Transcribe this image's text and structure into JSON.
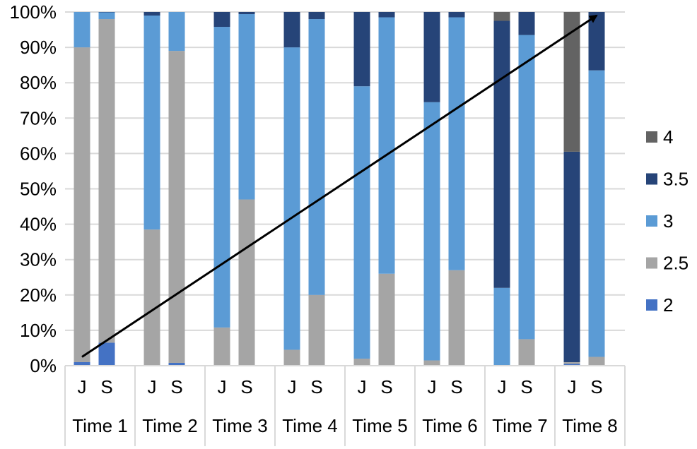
{
  "chart_data": {
    "type": "bar",
    "stacked": true,
    "percent_stacked": true,
    "title": "",
    "xlabel": "",
    "ylabel": "",
    "ylim": [
      0,
      100
    ],
    "y_ticks": [
      "0%",
      "10%",
      "20%",
      "30%",
      "40%",
      "50%",
      "60%",
      "70%",
      "80%",
      "90%",
      "100%"
    ],
    "grid": true,
    "legend_position": "right",
    "groups": [
      "Time 1",
      "Time 2",
      "Time 3",
      "Time 4",
      "Time 5",
      "Time 6",
      "Time 7",
      "Time 8"
    ],
    "sub_categories": [
      "J",
      "S"
    ],
    "categories": [
      "Time 1 J",
      "Time 1 S",
      "Time 2 J",
      "Time 2 S",
      "Time 3 J",
      "Time 3 S",
      "Time 4 J",
      "Time 4 S",
      "Time 5 J",
      "Time 5 S",
      "Time 6 J",
      "Time 6 S",
      "Time 7 J",
      "Time 7 S",
      "Time 8 J",
      "Time 8 S"
    ],
    "series": [
      {
        "name": "2",
        "color": "#4472C4",
        "values": [
          1,
          6.5,
          0,
          0.8,
          0,
          0,
          0,
          0,
          0,
          0,
          0,
          0,
          0,
          0,
          0.5,
          0
        ]
      },
      {
        "name": "2.5",
        "color": "#A5A5A5",
        "values": [
          89,
          91.5,
          38.5,
          88.2,
          10.8,
          47,
          4.5,
          20,
          2,
          26,
          1.5,
          27,
          0,
          7.5,
          0.5,
          2.5
        ]
      },
      {
        "name": "3",
        "color": "#5B9BD5",
        "values": [
          10,
          1.9,
          60.5,
          11,
          85,
          52.4,
          85.5,
          78,
          77,
          72.5,
          73,
          71.5,
          22,
          86,
          0,
          81
        ]
      },
      {
        "name": "3.5",
        "color": "#264478",
        "values": [
          0,
          0.1,
          1,
          0,
          4.2,
          0.6,
          10,
          2,
          21,
          1.5,
          25.5,
          1.5,
          75.5,
          6.5,
          59.5,
          16.5
        ]
      },
      {
        "name": "4",
        "color": "#636363",
        "values": [
          0,
          0,
          0,
          0,
          0,
          0,
          0,
          0,
          0,
          0,
          0,
          0,
          2.5,
          0,
          39.5,
          0
        ]
      }
    ],
    "annotations": [
      {
        "type": "arrow",
        "from": {
          "category": "Time 1 J",
          "value": 2.5
        },
        "to": {
          "category": "Time 8 S",
          "value": 99
        }
      }
    ]
  }
}
